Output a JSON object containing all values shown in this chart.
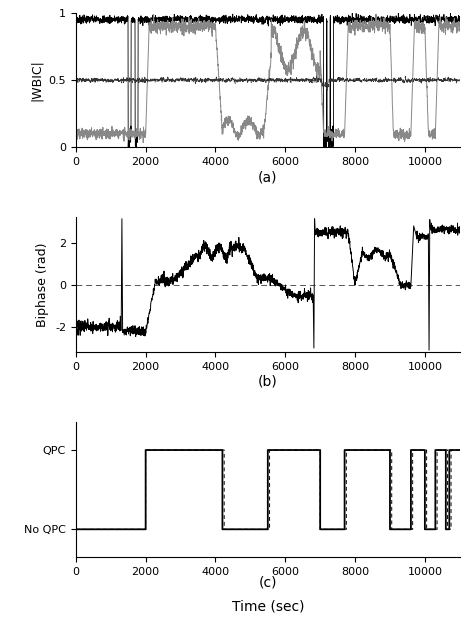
{
  "xlim": [
    0,
    11000
  ],
  "xticks": [
    0,
    2000,
    4000,
    6000,
    8000,
    10000
  ],
  "panel_a": {
    "ylabel": "|WBIC|",
    "ylim": [
      0,
      1
    ],
    "yticks": [
      0,
      0.5,
      1
    ],
    "sublabel": "(a)"
  },
  "panel_b": {
    "ylabel": "Biphase (rad)",
    "ylim": [
      -3.2,
      3.2
    ],
    "yticks": [
      -2,
      0,
      2
    ],
    "sublabel": "(b)"
  },
  "panel_c": {
    "ytick_labels": [
      "No QPC",
      "QPC"
    ],
    "ytick_positions": [
      0,
      1
    ],
    "ylim": [
      -0.35,
      1.35
    ],
    "sublabel": "(c)"
  },
  "xlabel": "Time (sec)",
  "background_color": "#ffffff",
  "line_color_black": "#000000",
  "line_color_grey": "#888888"
}
